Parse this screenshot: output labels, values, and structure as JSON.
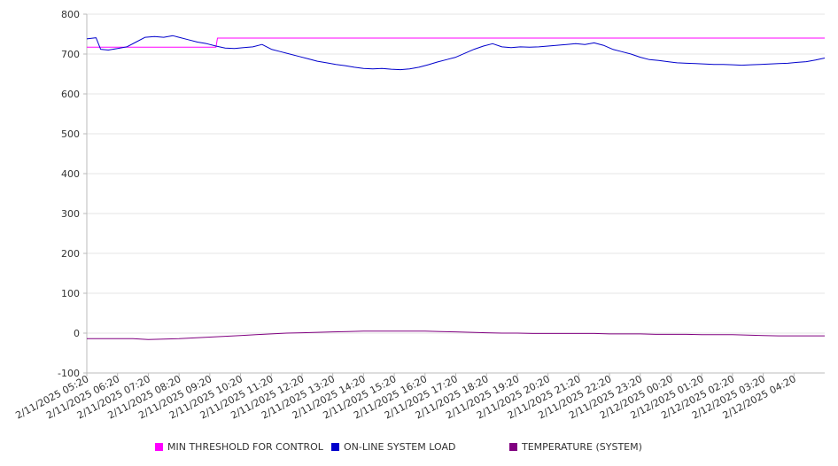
{
  "chart_data": {
    "type": "line",
    "ylim": [
      -100,
      800
    ],
    "yticks": [
      -100,
      0,
      100,
      200,
      300,
      400,
      500,
      600,
      700,
      800
    ],
    "grid": true,
    "legend_position": "bottom",
    "x_tick_labels": [
      "2/11/2025 05:20",
      "2/11/2025 06:20",
      "2/11/2025 07:20",
      "2/11/2025 08:20",
      "2/11/2025 09:20",
      "2/11/2025 10:20",
      "2/11/2025 11:20",
      "2/11/2025 12:20",
      "2/11/2025 13:20",
      "2/11/2025 14:20",
      "2/11/2025 15:20",
      "2/11/2025 16:20",
      "2/11/2025 17:20",
      "2/11/2025 18:20",
      "2/11/2025 19:20",
      "2/11/2025 20:20",
      "2/11/2025 21:20",
      "2/11/2025 22:20",
      "2/11/2025 23:20",
      "2/12/2025 00:20",
      "2/12/2025 01:20",
      "2/12/2025 02:20",
      "2/12/2025 03:20",
      "2/12/2025 04:20"
    ],
    "x_range_hours": [
      0,
      24
    ],
    "series": [
      {
        "name": "MIN THRESHOLD FOR CONTROL",
        "color": "#ff00ff",
        "points": [
          [
            0,
            717
          ],
          [
            4.2,
            717
          ],
          [
            4.25,
            740
          ],
          [
            24,
            740
          ]
        ]
      },
      {
        "name": "ON-LINE SYSTEM LOAD",
        "color": "#0000cc",
        "points": [
          [
            0,
            738
          ],
          [
            0.3,
            741
          ],
          [
            0.45,
            712
          ],
          [
            0.7,
            710
          ],
          [
            1.0,
            714
          ],
          [
            1.3,
            718
          ],
          [
            1.6,
            730
          ],
          [
            1.9,
            742
          ],
          [
            2.2,
            744
          ],
          [
            2.5,
            742
          ],
          [
            2.8,
            746
          ],
          [
            3.0,
            742
          ],
          [
            3.3,
            736
          ],
          [
            3.6,
            730
          ],
          [
            3.9,
            726
          ],
          [
            4.2,
            720
          ],
          [
            4.5,
            715
          ],
          [
            4.8,
            714
          ],
          [
            5.1,
            716
          ],
          [
            5.4,
            718
          ],
          [
            5.7,
            724
          ],
          [
            6.0,
            712
          ],
          [
            6.3,
            706
          ],
          [
            6.6,
            700
          ],
          [
            6.9,
            694
          ],
          [
            7.2,
            688
          ],
          [
            7.5,
            682
          ],
          [
            7.8,
            678
          ],
          [
            8.1,
            674
          ],
          [
            8.4,
            671
          ],
          [
            8.7,
            667
          ],
          [
            9.0,
            664
          ],
          [
            9.3,
            663
          ],
          [
            9.6,
            664
          ],
          [
            9.9,
            662
          ],
          [
            10.2,
            661
          ],
          [
            10.5,
            663
          ],
          [
            10.8,
            667
          ],
          [
            11.1,
            673
          ],
          [
            11.4,
            680
          ],
          [
            11.7,
            686
          ],
          [
            12.0,
            692
          ],
          [
            12.3,
            702
          ],
          [
            12.6,
            712
          ],
          [
            12.9,
            720
          ],
          [
            13.2,
            726
          ],
          [
            13.5,
            718
          ],
          [
            13.8,
            716
          ],
          [
            14.1,
            718
          ],
          [
            14.4,
            717
          ],
          [
            14.7,
            718
          ],
          [
            15.0,
            720
          ],
          [
            15.3,
            722
          ],
          [
            15.6,
            724
          ],
          [
            15.9,
            726
          ],
          [
            16.2,
            724
          ],
          [
            16.5,
            728
          ],
          [
            16.8,
            722
          ],
          [
            17.1,
            712
          ],
          [
            17.4,
            706
          ],
          [
            17.7,
            700
          ],
          [
            18.0,
            692
          ],
          [
            18.3,
            686
          ],
          [
            18.6,
            684
          ],
          [
            18.9,
            681
          ],
          [
            19.2,
            678
          ],
          [
            19.5,
            677
          ],
          [
            19.8,
            676
          ],
          [
            20.1,
            675
          ],
          [
            20.4,
            674
          ],
          [
            20.7,
            674
          ],
          [
            21.0,
            673
          ],
          [
            21.3,
            672
          ],
          [
            21.6,
            673
          ],
          [
            21.9,
            674
          ],
          [
            22.2,
            675
          ],
          [
            22.5,
            676
          ],
          [
            22.8,
            677
          ],
          [
            23.1,
            679
          ],
          [
            23.4,
            681
          ],
          [
            23.7,
            685
          ],
          [
            24.0,
            690
          ]
        ]
      },
      {
        "name": "TEMPERATURE (SYSTEM)",
        "color": "#800080",
        "points": [
          [
            0,
            -14
          ],
          [
            1.5,
            -14
          ],
          [
            2.0,
            -16
          ],
          [
            2.5,
            -15
          ],
          [
            3.0,
            -14
          ],
          [
            3.5,
            -12
          ],
          [
            4.0,
            -10
          ],
          [
            4.5,
            -8
          ],
          [
            5.0,
            -6
          ],
          [
            5.5,
            -4
          ],
          [
            6.0,
            -2
          ],
          [
            6.5,
            0
          ],
          [
            7.0,
            1
          ],
          [
            7.5,
            2
          ],
          [
            8.0,
            3
          ],
          [
            8.5,
            4
          ],
          [
            9.0,
            5
          ],
          [
            9.5,
            5
          ],
          [
            10.0,
            5
          ],
          [
            10.5,
            5
          ],
          [
            11.0,
            5
          ],
          [
            11.5,
            4
          ],
          [
            12.0,
            3
          ],
          [
            12.5,
            2
          ],
          [
            13.0,
            1
          ],
          [
            13.5,
            0
          ],
          [
            14.0,
            0
          ],
          [
            14.5,
            -1
          ],
          [
            15.0,
            -1
          ],
          [
            15.5,
            -1
          ],
          [
            16.0,
            -1
          ],
          [
            16.5,
            -1
          ],
          [
            17.0,
            -2
          ],
          [
            17.5,
            -2
          ],
          [
            18.0,
            -2
          ],
          [
            18.5,
            -3
          ],
          [
            19.0,
            -3
          ],
          [
            19.5,
            -3
          ],
          [
            20.0,
            -4
          ],
          [
            20.5,
            -4
          ],
          [
            21.0,
            -4
          ],
          [
            21.5,
            -5
          ],
          [
            22.0,
            -6
          ],
          [
            22.5,
            -7
          ],
          [
            23.0,
            -7
          ],
          [
            23.5,
            -7
          ],
          [
            24.0,
            -7
          ]
        ]
      }
    ]
  }
}
